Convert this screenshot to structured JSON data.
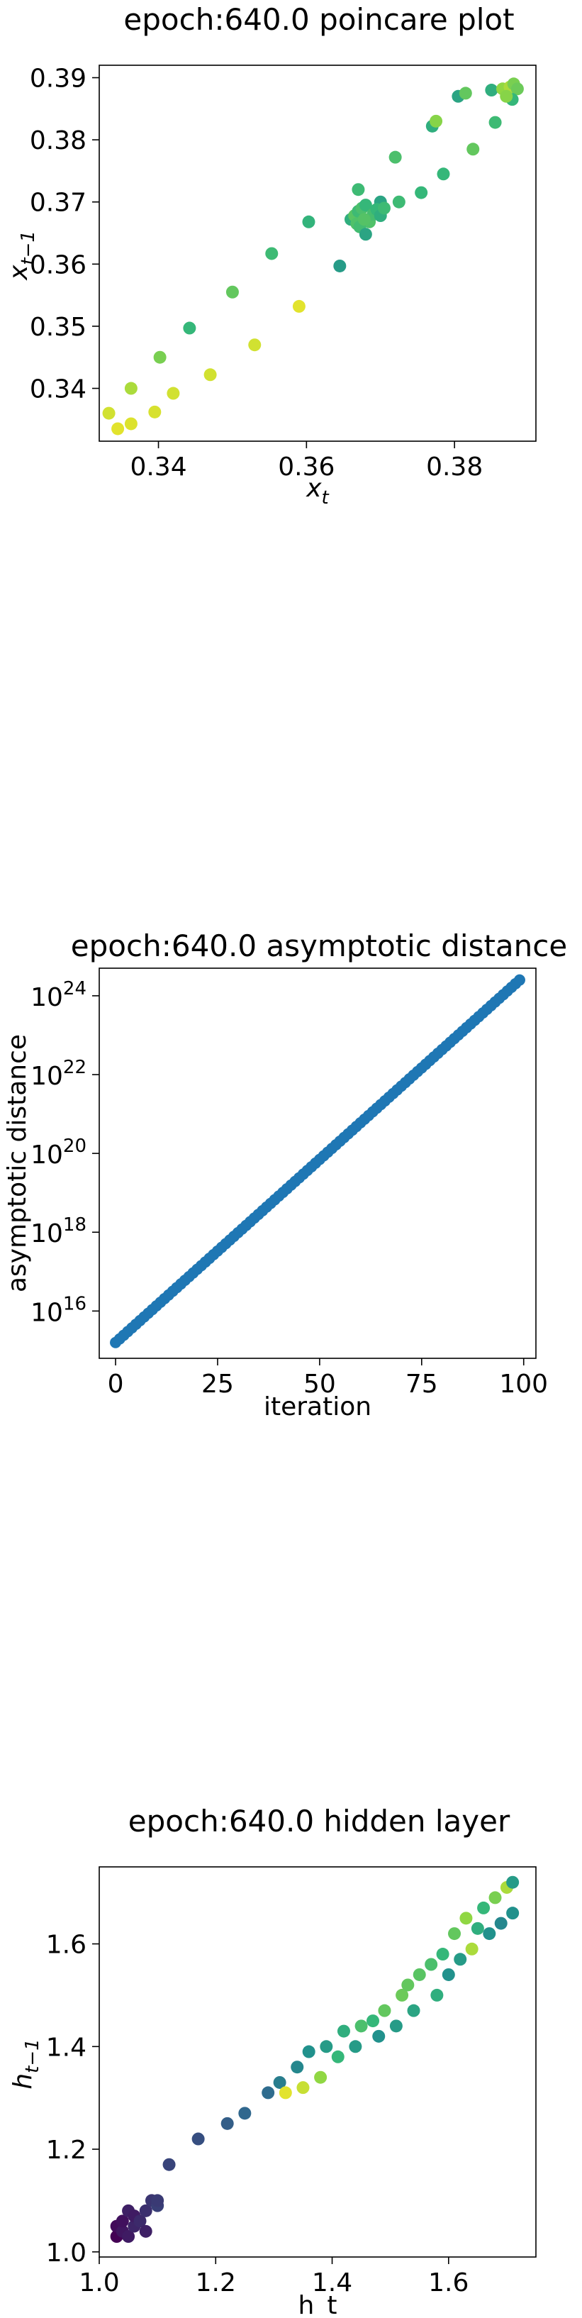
{
  "chart_data": [
    {
      "type": "scatter",
      "title": "epoch:640.0 poincare plot",
      "xlabel": "x",
      "xlabel_sub": "t",
      "ylabel": "x",
      "ylabel_sub": "t−1",
      "xlim": [
        0.332,
        0.391
      ],
      "ylim": [
        0.3315,
        0.392
      ],
      "xticks": [
        0.34,
        0.36,
        0.38
      ],
      "xtick_labels": [
        "0.34",
        "0.36",
        "0.38"
      ],
      "yticks": [
        0.34,
        0.35,
        0.36,
        0.37,
        0.38,
        0.39
      ],
      "ytick_labels": [
        "0.34",
        "0.35",
        "0.36",
        "0.37",
        "0.38",
        "0.39"
      ],
      "colormap": [
        "#440154",
        "#31688e",
        "#21918c",
        "#35b779",
        "#90d743",
        "#fde725"
      ],
      "points": [
        {
          "x": 0.3333,
          "y": 0.336,
          "c": 0.92
        },
        {
          "x": 0.3345,
          "y": 0.3335,
          "c": 0.95
        },
        {
          "x": 0.3363,
          "y": 0.34,
          "c": 0.85
        },
        {
          "x": 0.3363,
          "y": 0.3343,
          "c": 0.94
        },
        {
          "x": 0.3395,
          "y": 0.3362,
          "c": 0.93
        },
        {
          "x": 0.3402,
          "y": 0.345,
          "c": 0.75
        },
        {
          "x": 0.342,
          "y": 0.3392,
          "c": 0.92
        },
        {
          "x": 0.3442,
          "y": 0.3497,
          "c": 0.6
        },
        {
          "x": 0.347,
          "y": 0.3422,
          "c": 0.92
        },
        {
          "x": 0.35,
          "y": 0.3555,
          "c": 0.7
        },
        {
          "x": 0.353,
          "y": 0.347,
          "c": 0.92
        },
        {
          "x": 0.3553,
          "y": 0.3617,
          "c": 0.62
        },
        {
          "x": 0.359,
          "y": 0.3532,
          "c": 0.95
        },
        {
          "x": 0.3603,
          "y": 0.3668,
          "c": 0.58
        },
        {
          "x": 0.3645,
          "y": 0.3597,
          "c": 0.45
        },
        {
          "x": 0.367,
          "y": 0.372,
          "c": 0.62
        },
        {
          "x": 0.37,
          "y": 0.37,
          "c": 0.5
        },
        {
          "x": 0.366,
          "y": 0.3672,
          "c": 0.55
        },
        {
          "x": 0.3665,
          "y": 0.3678,
          "c": 0.68
        },
        {
          "x": 0.367,
          "y": 0.3685,
          "c": 0.62
        },
        {
          "x": 0.3675,
          "y": 0.369,
          "c": 0.65
        },
        {
          "x": 0.368,
          "y": 0.3695,
          "c": 0.6
        },
        {
          "x": 0.3685,
          "y": 0.3668,
          "c": 0.66
        },
        {
          "x": 0.369,
          "y": 0.368,
          "c": 0.64
        },
        {
          "x": 0.3668,
          "y": 0.3665,
          "c": 0.66
        },
        {
          "x": 0.3672,
          "y": 0.366,
          "c": 0.63
        },
        {
          "x": 0.3678,
          "y": 0.3672,
          "c": 0.67
        },
        {
          "x": 0.3695,
          "y": 0.3688,
          "c": 0.6
        },
        {
          "x": 0.37,
          "y": 0.3678,
          "c": 0.55
        },
        {
          "x": 0.368,
          "y": 0.3648,
          "c": 0.5
        },
        {
          "x": 0.3705,
          "y": 0.369,
          "c": 0.62
        },
        {
          "x": 0.372,
          "y": 0.3772,
          "c": 0.65
        },
        {
          "x": 0.3725,
          "y": 0.37,
          "c": 0.62
        },
        {
          "x": 0.3755,
          "y": 0.3715,
          "c": 0.6
        },
        {
          "x": 0.377,
          "y": 0.3822,
          "c": 0.55
        },
        {
          "x": 0.3775,
          "y": 0.383,
          "c": 0.78
        },
        {
          "x": 0.3785,
          "y": 0.3745,
          "c": 0.6
        },
        {
          "x": 0.3805,
          "y": 0.387,
          "c": 0.5
        },
        {
          "x": 0.3815,
          "y": 0.3875,
          "c": 0.7
        },
        {
          "x": 0.3825,
          "y": 0.3785,
          "c": 0.7
        },
        {
          "x": 0.385,
          "y": 0.388,
          "c": 0.55
        },
        {
          "x": 0.3855,
          "y": 0.3828,
          "c": 0.62
        },
        {
          "x": 0.3865,
          "y": 0.3882,
          "c": 0.8
        },
        {
          "x": 0.3875,
          "y": 0.3885,
          "c": 0.85
        },
        {
          "x": 0.388,
          "y": 0.389,
          "c": 0.75
        },
        {
          "x": 0.3885,
          "y": 0.3882,
          "c": 0.72
        },
        {
          "x": 0.3878,
          "y": 0.3865,
          "c": 0.6
        },
        {
          "x": 0.387,
          "y": 0.387,
          "c": 0.78
        }
      ]
    },
    {
      "type": "scatter",
      "title": "epoch:640.0 asymptotic distance",
      "xlabel": "iteration",
      "ylabel": "asymptotic distance",
      "yscale": "log",
      "xlim": [
        -4,
        103
      ],
      "ylim_log10": [
        14.8,
        24.7
      ],
      "xticks": [
        0,
        25,
        50,
        75,
        100
      ],
      "xtick_labels": [
        "0",
        "25",
        "50",
        "75",
        "100"
      ],
      "yticks_log10": [
        16,
        18,
        20,
        22,
        24
      ],
      "ytick_base": "10",
      "ytick_exponents": [
        "16",
        "18",
        "20",
        "22",
        "24"
      ],
      "color": "#1f77b4",
      "iterations": [
        0,
        99
      ],
      "log10_distance": [
        15.2,
        24.4
      ]
    },
    {
      "type": "scatter",
      "title": "epoch:640.0 hidden layer",
      "xlabel": "h_t",
      "ylabel": "h",
      "ylabel_sub": "t−1",
      "xlim": [
        1.0,
        1.75
      ],
      "ylim": [
        0.99,
        1.75
      ],
      "xticks": [
        1.0,
        1.2,
        1.4,
        1.6
      ],
      "xtick_labels": [
        "1.0",
        "1.2",
        "1.4",
        "1.6"
      ],
      "yticks": [
        1.0,
        1.2,
        1.4,
        1.6
      ],
      "ytick_labels": [
        "1.0",
        "1.2",
        "1.4",
        "1.6"
      ],
      "colormap": [
        "#440154",
        "#31688e",
        "#21918c",
        "#35b779",
        "#90d743",
        "#fde725"
      ],
      "points": [
        {
          "x": 1.03,
          "y": 1.03,
          "c": 0.0
        },
        {
          "x": 1.03,
          "y": 1.05,
          "c": 0.02
        },
        {
          "x": 1.04,
          "y": 1.04,
          "c": 0.04
        },
        {
          "x": 1.04,
          "y": 1.06,
          "c": 0.03
        },
        {
          "x": 1.05,
          "y": 1.03,
          "c": 0.05
        },
        {
          "x": 1.05,
          "y": 1.08,
          "c": 0.06
        },
        {
          "x": 1.06,
          "y": 1.05,
          "c": 0.07
        },
        {
          "x": 1.06,
          "y": 1.07,
          "c": 0.05
        },
        {
          "x": 1.07,
          "y": 1.06,
          "c": 0.08
        },
        {
          "x": 1.08,
          "y": 1.04,
          "c": 0.06
        },
        {
          "x": 1.08,
          "y": 1.08,
          "c": 0.09
        },
        {
          "x": 1.09,
          "y": 1.1,
          "c": 0.1
        },
        {
          "x": 1.1,
          "y": 1.09,
          "c": 0.12
        },
        {
          "x": 1.1,
          "y": 1.1,
          "c": 0.11
        },
        {
          "x": 1.12,
          "y": 1.17,
          "c": 0.13
        },
        {
          "x": 1.17,
          "y": 1.22,
          "c": 0.15
        },
        {
          "x": 1.22,
          "y": 1.25,
          "c": 0.18
        },
        {
          "x": 1.25,
          "y": 1.27,
          "c": 0.2
        },
        {
          "x": 1.29,
          "y": 1.31,
          "c": 0.22
        },
        {
          "x": 1.31,
          "y": 1.33,
          "c": 0.3
        },
        {
          "x": 1.32,
          "y": 1.31,
          "c": 0.95
        },
        {
          "x": 1.34,
          "y": 1.36,
          "c": 0.35
        },
        {
          "x": 1.35,
          "y": 1.32,
          "c": 0.9
        },
        {
          "x": 1.36,
          "y": 1.39,
          "c": 0.4
        },
        {
          "x": 1.38,
          "y": 1.34,
          "c": 0.8
        },
        {
          "x": 1.39,
          "y": 1.4,
          "c": 0.45
        },
        {
          "x": 1.41,
          "y": 1.38,
          "c": 0.6
        },
        {
          "x": 1.42,
          "y": 1.43,
          "c": 0.55
        },
        {
          "x": 1.44,
          "y": 1.4,
          "c": 0.45
        },
        {
          "x": 1.45,
          "y": 1.44,
          "c": 0.65
        },
        {
          "x": 1.47,
          "y": 1.45,
          "c": 0.6
        },
        {
          "x": 1.48,
          "y": 1.42,
          "c": 0.4
        },
        {
          "x": 1.49,
          "y": 1.47,
          "c": 0.7
        },
        {
          "x": 1.51,
          "y": 1.44,
          "c": 0.45
        },
        {
          "x": 1.52,
          "y": 1.5,
          "c": 0.72
        },
        {
          "x": 1.53,
          "y": 1.52,
          "c": 0.7
        },
        {
          "x": 1.54,
          "y": 1.47,
          "c": 0.5
        },
        {
          "x": 1.55,
          "y": 1.54,
          "c": 0.68
        },
        {
          "x": 1.57,
          "y": 1.56,
          "c": 0.65
        },
        {
          "x": 1.58,
          "y": 1.5,
          "c": 0.55
        },
        {
          "x": 1.59,
          "y": 1.58,
          "c": 0.6
        },
        {
          "x": 1.6,
          "y": 1.54,
          "c": 0.4
        },
        {
          "x": 1.61,
          "y": 1.62,
          "c": 0.7
        },
        {
          "x": 1.62,
          "y": 1.57,
          "c": 0.45
        },
        {
          "x": 1.63,
          "y": 1.65,
          "c": 0.8
        },
        {
          "x": 1.64,
          "y": 1.59,
          "c": 0.85
        },
        {
          "x": 1.65,
          "y": 1.63,
          "c": 0.55
        },
        {
          "x": 1.66,
          "y": 1.67,
          "c": 0.6
        },
        {
          "x": 1.67,
          "y": 1.62,
          "c": 0.4
        },
        {
          "x": 1.68,
          "y": 1.69,
          "c": 0.75
        },
        {
          "x": 1.69,
          "y": 1.64,
          "c": 0.35
        },
        {
          "x": 1.7,
          "y": 1.71,
          "c": 0.85
        },
        {
          "x": 1.71,
          "y": 1.66,
          "c": 0.4
        },
        {
          "x": 1.71,
          "y": 1.72,
          "c": 0.45
        }
      ]
    }
  ]
}
